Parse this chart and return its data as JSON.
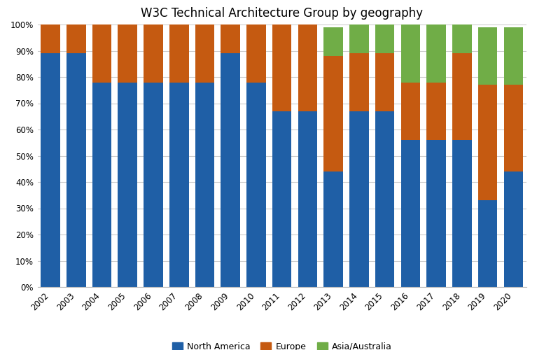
{
  "title": "W3C Technical Architecture Group by geography",
  "years": [
    2002,
    2003,
    2004,
    2005,
    2006,
    2007,
    2008,
    2009,
    2010,
    2011,
    2012,
    2013,
    2014,
    2015,
    2016,
    2017,
    2018,
    2019,
    2020
  ],
  "north_america": [
    89,
    89,
    78,
    78,
    78,
    78,
    78,
    89,
    78,
    67,
    67,
    44,
    67,
    67,
    56,
    56,
    56,
    33,
    44
  ],
  "europe": [
    11,
    11,
    22,
    22,
    22,
    22,
    22,
    11,
    22,
    33,
    33,
    44,
    22,
    22,
    22,
    22,
    33,
    44,
    33
  ],
  "asia_australia": [
    0,
    0,
    0,
    0,
    0,
    0,
    0,
    0,
    0,
    0,
    0,
    11,
    11,
    11,
    22,
    22,
    11,
    22,
    22
  ],
  "colors": {
    "north_america": "#1f5fa6",
    "europe": "#c55a11",
    "asia_australia": "#70ad47"
  },
  "legend_labels": [
    "North America",
    "Europe",
    "Asia/Australia"
  ],
  "ylim": [
    0,
    100
  ],
  "ytick_labels": [
    "0%",
    "10%",
    "20%",
    "30%",
    "40%",
    "50%",
    "60%",
    "70%",
    "80%",
    "90%",
    "100%"
  ],
  "ytick_values": [
    0,
    10,
    20,
    30,
    40,
    50,
    60,
    70,
    80,
    90,
    100
  ],
  "background_color": "#ffffff",
  "grid_color": "#cccccc",
  "title_fontsize": 12,
  "tick_fontsize": 8.5,
  "bar_width": 0.75
}
